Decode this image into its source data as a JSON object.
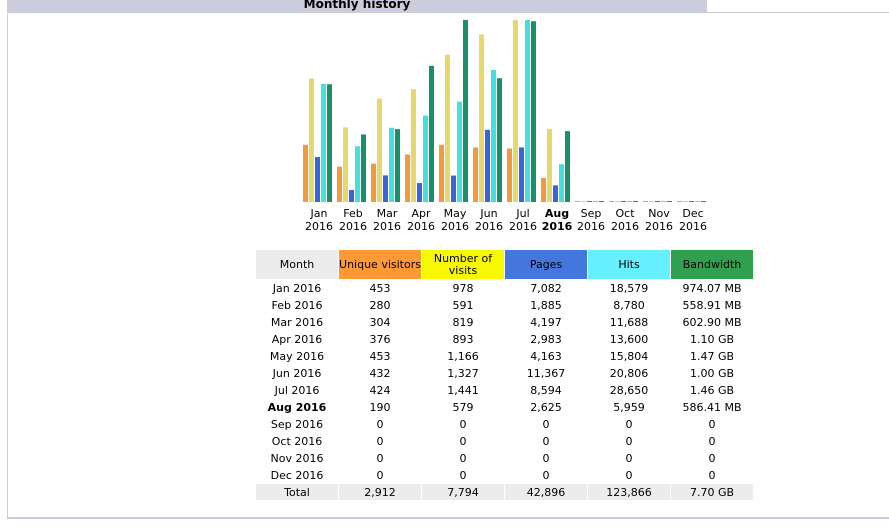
{
  "header": {
    "title": "Monthly history"
  },
  "colors": {
    "unique_visitors": "#f29a3c",
    "visits": "#e6d86a",
    "pages": "#3b64d6",
    "hits": "#44e0e0",
    "bandwidth": "#17916a",
    "header_bg": "#ccccdd"
  },
  "table": {
    "headers": {
      "month": "Month",
      "unique_visitors": "Unique visitors",
      "visits": "Number of visits",
      "pages": "Pages",
      "hits": "Hits",
      "bandwidth": "Bandwidth"
    },
    "rows": [
      {
        "month": "Jan 2016",
        "uv": "453",
        "visits": "978",
        "pages": "7,082",
        "hits": "18,579",
        "bw": "974.07 MB"
      },
      {
        "month": "Feb 2016",
        "uv": "280",
        "visits": "591",
        "pages": "1,885",
        "hits": "8,780",
        "bw": "558.91 MB"
      },
      {
        "month": "Mar 2016",
        "uv": "304",
        "visits": "819",
        "pages": "4,197",
        "hits": "11,688",
        "bw": "602.90 MB"
      },
      {
        "month": "Apr 2016",
        "uv": "376",
        "visits": "893",
        "pages": "2,983",
        "hits": "13,600",
        "bw": "1.10 GB"
      },
      {
        "month": "May 2016",
        "uv": "453",
        "visits": "1,166",
        "pages": "4,163",
        "hits": "15,804",
        "bw": "1.47 GB"
      },
      {
        "month": "Jun 2016",
        "uv": "432",
        "visits": "1,327",
        "pages": "11,367",
        "hits": "20,806",
        "bw": "1.00 GB"
      },
      {
        "month": "Jul 2016",
        "uv": "424",
        "visits": "1,441",
        "pages": "8,594",
        "hits": "28,650",
        "bw": "1.46 GB"
      },
      {
        "month": "Aug 2016",
        "uv": "190",
        "visits": "579",
        "pages": "2,625",
        "hits": "5,959",
        "bw": "586.41 MB",
        "current": true
      },
      {
        "month": "Sep 2016",
        "uv": "0",
        "visits": "0",
        "pages": "0",
        "hits": "0",
        "bw": "0"
      },
      {
        "month": "Oct 2016",
        "uv": "0",
        "visits": "0",
        "pages": "0",
        "hits": "0",
        "bw": "0"
      },
      {
        "month": "Nov 2016",
        "uv": "0",
        "visits": "0",
        "pages": "0",
        "hits": "0",
        "bw": "0"
      },
      {
        "month": "Dec 2016",
        "uv": "0",
        "visits": "0",
        "pages": "0",
        "hits": "0",
        "bw": "0"
      }
    ],
    "total": {
      "label": "Total",
      "uv": "2,912",
      "visits": "7,794",
      "pages": "42,896",
      "hits": "123,866",
      "bw": "7.70 GB"
    }
  },
  "chart_data": {
    "type": "bar",
    "categories": [
      "Jan 2016",
      "Feb 2016",
      "Mar 2016",
      "Apr 2016",
      "May 2016",
      "Jun 2016",
      "Jul 2016",
      "Aug 2016",
      "Sep 2016",
      "Oct 2016",
      "Nov 2016",
      "Dec 2016"
    ],
    "month_labels": [
      "Jan",
      "Feb",
      "Mar",
      "Apr",
      "May",
      "Jun",
      "Jul",
      "Aug",
      "Sep",
      "Oct",
      "Nov",
      "Dec"
    ],
    "year_label": "2016",
    "current_index": 7,
    "series": [
      {
        "name": "Unique visitors",
        "values": [
          453,
          280,
          304,
          376,
          453,
          432,
          424,
          190,
          0,
          0,
          0,
          0
        ]
      },
      {
        "name": "Number of visits",
        "values": [
          978,
          591,
          819,
          893,
          1166,
          1327,
          1441,
          579,
          0,
          0,
          0,
          0
        ]
      },
      {
        "name": "Pages",
        "values": [
          7082,
          1885,
          4197,
          2983,
          4163,
          11367,
          8594,
          2625,
          0,
          0,
          0,
          0
        ]
      },
      {
        "name": "Hits",
        "values": [
          18579,
          8780,
          11688,
          13600,
          15804,
          20806,
          28650,
          5959,
          0,
          0,
          0,
          0
        ]
      },
      {
        "name": "Bandwidth",
        "values": [
          974.07,
          558.91,
          602.9,
          1126.4,
          1505.28,
          1024,
          1495.04,
          586.41,
          0,
          0,
          0,
          0
        ],
        "unit": "MB"
      }
    ],
    "scale_groups": [
      [
        0,
        1
      ],
      [
        2,
        3
      ],
      [
        4
      ]
    ]
  }
}
